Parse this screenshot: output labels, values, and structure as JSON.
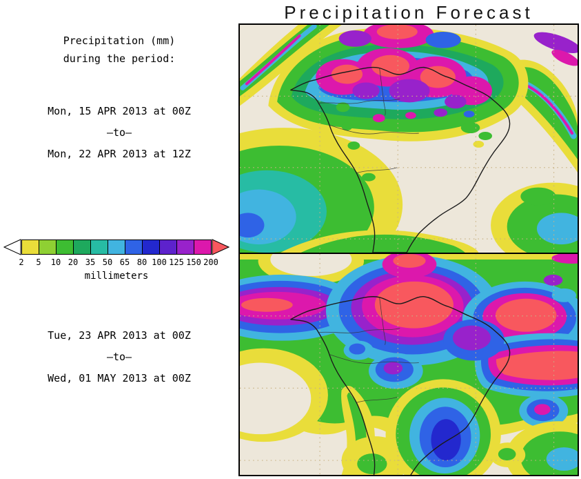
{
  "title": "Precipitation Forecast",
  "sidebar": {
    "heading_line1": "Precipitation (mm)",
    "heading_line2": "during the period:",
    "period1": {
      "from": "Mon, 15 APR 2013 at 00Z",
      "separator": "–to–",
      "to": "Mon, 22 APR 2013 at 12Z"
    },
    "period2": {
      "from": "Tue, 23 APR 2013 at 00Z",
      "separator": "–to–",
      "to": "Wed, 01 MAY 2013 at 00Z"
    }
  },
  "legend": {
    "ticks": [
      "2",
      "5",
      "10",
      "20",
      "35",
      "50",
      "65",
      "80",
      "100",
      "125",
      "150",
      "200"
    ],
    "colors": [
      "#E9DD3A",
      "#8FD033",
      "#3DBD32",
      "#1EA95D",
      "#27BCA4",
      "#41B4E0",
      "#2F63E6",
      "#2328CE",
      "#5D22CC",
      "#9822CB",
      "#DC18AC"
    ],
    "under_color": "#FFFFFF",
    "over_color": "#F8585E",
    "unit_label": "millimeters"
  }
}
